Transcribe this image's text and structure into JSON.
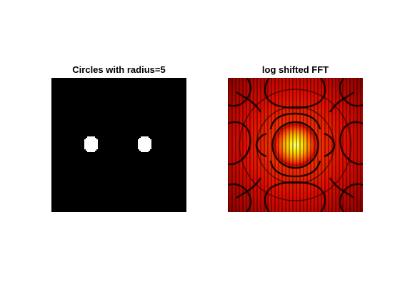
{
  "figure": {
    "left_title": "Circles with radius=5",
    "right_title": "log shifted FFT"
  },
  "left_panel": {
    "background_color": "#000000",
    "circle_color": "#ffffff",
    "circles": [
      {
        "name": "left-circle"
      },
      {
        "name": "right-circle"
      }
    ]
  },
  "right_panel": {
    "colormap": "hot",
    "content": "log-magnitude shifted FFT pattern with bright center and ring/interference structure"
  }
}
